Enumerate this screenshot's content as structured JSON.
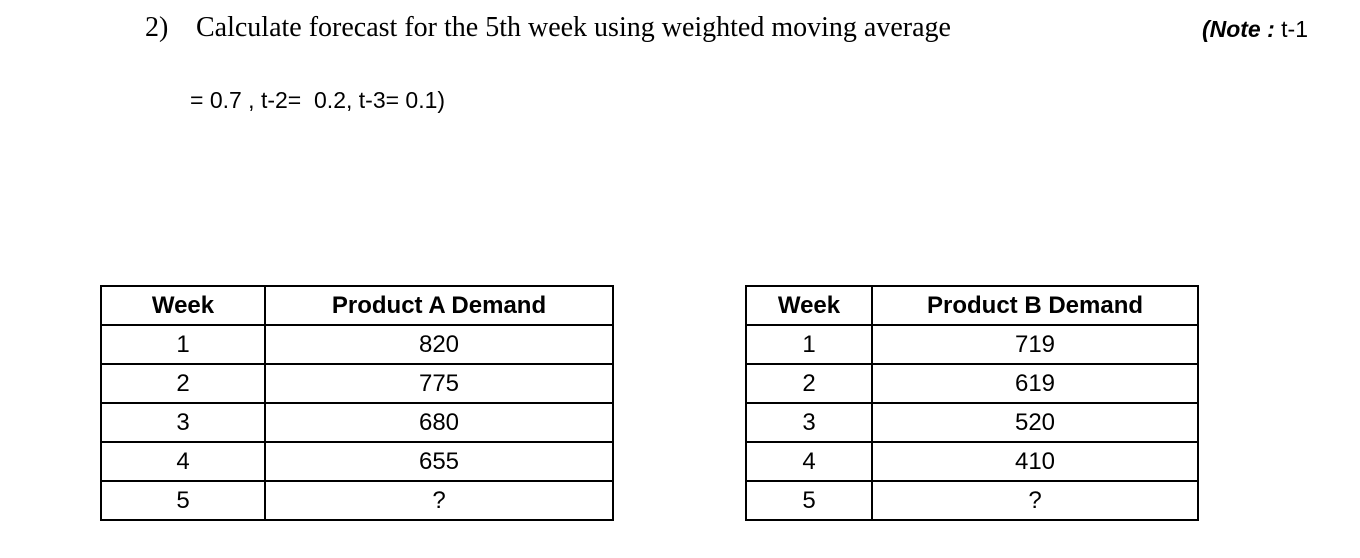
{
  "question": {
    "number": "2)",
    "text": "Calculate forecast for the 5th week using weighted moving average",
    "note": {
      "bold": "(Note :",
      "rest": " t-1"
    },
    "line2": "= 0.7 , t-2=  0.2, t-3= 0.1)"
  },
  "tables": [
    {
      "headers": [
        "Week",
        "Product A Demand"
      ],
      "rows": [
        [
          "1",
          "820"
        ],
        [
          "2",
          "775"
        ],
        [
          "3",
          "680"
        ],
        [
          "4",
          "655"
        ],
        [
          "5",
          "?"
        ]
      ]
    },
    {
      "headers": [
        "Week",
        "Product B Demand"
      ],
      "rows": [
        [
          "1",
          "719"
        ],
        [
          "2",
          "619"
        ],
        [
          "3",
          "520"
        ],
        [
          "4",
          "410"
        ],
        [
          "5",
          "?"
        ]
      ]
    }
  ]
}
